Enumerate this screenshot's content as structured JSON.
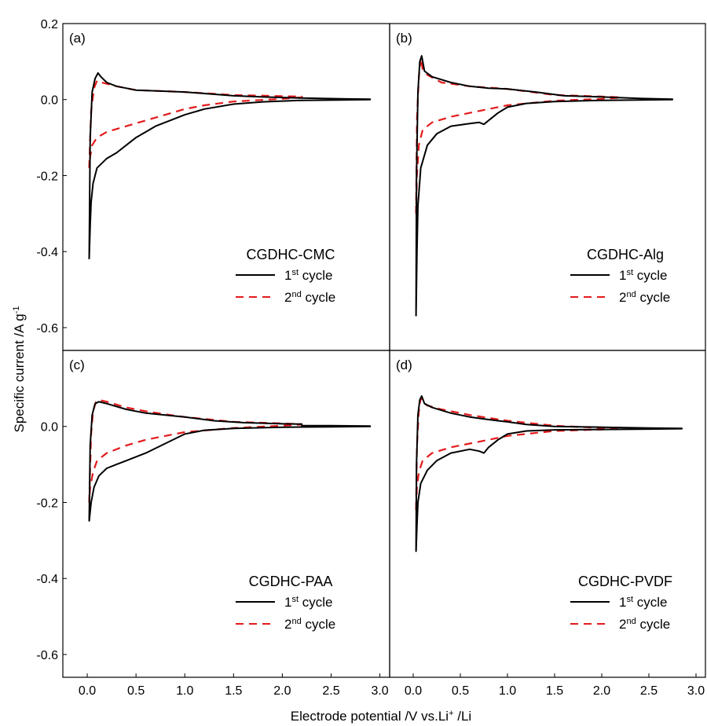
{
  "figure": {
    "ylabel_main": "Specific current /A g",
    "ylabel_sup": "-1",
    "xlabel_main": "Electrode potential /V vs.Li",
    "xlabel_sup": "+",
    "xlabel_tail": " /Li"
  },
  "legend_suffix": {
    "first": "st",
    "second": "nd",
    "cycle": " cycle"
  },
  "chart_data": [
    {
      "type": "line",
      "panel": "(a)",
      "title": "CGDHC-CMC",
      "xlim": [
        -0.25,
        3.1
      ],
      "ylim": [
        -0.66,
        0.2
      ],
      "yticks": [
        "0.2",
        "0.0",
        "-0.2",
        "-0.4",
        "-0.6"
      ],
      "xticks": [],
      "legend": "right",
      "series": [
        {
          "name": "1",
          "color": "#000000",
          "dash": "none",
          "x": [
            0.02,
            0.03,
            0.05,
            0.08,
            0.11,
            0.14,
            0.2,
            0.3,
            0.5,
            0.8,
            1.0,
            1.2,
            1.5,
            1.8,
            2.2,
            2.6,
            2.9,
            2.9,
            2.6,
            2.2,
            1.8,
            1.5,
            1.2,
            1.0,
            0.85,
            0.7,
            0.6,
            0.5,
            0.4,
            0.3,
            0.2,
            0.1,
            0.06,
            0.04,
            0.03,
            0.02
          ],
          "y": [
            -0.42,
            -0.1,
            0.02,
            0.055,
            0.07,
            0.06,
            0.045,
            0.035,
            0.025,
            0.022,
            0.02,
            0.016,
            0.01,
            0.007,
            0.004,
            0.002,
            0.001,
            0.0,
            -0.001,
            -0.002,
            -0.006,
            -0.012,
            -0.025,
            -0.04,
            -0.055,
            -0.07,
            -0.085,
            -0.1,
            -0.12,
            -0.14,
            -0.155,
            -0.18,
            -0.22,
            -0.27,
            -0.33,
            -0.42
          ]
        },
        {
          "name": "2",
          "color": "#e31a1c",
          "dash": "10,7",
          "x": [
            0.02,
            0.04,
            0.07,
            0.1,
            0.15,
            0.3,
            0.5,
            0.8,
            1.0,
            1.5,
            2.0,
            2.2,
            2.2,
            2.0,
            1.5,
            1.2,
            1.0,
            0.8,
            0.6,
            0.4,
            0.2,
            0.1,
            0.05,
            0.03,
            0.02
          ],
          "y": [
            -0.18,
            -0.03,
            0.03,
            0.05,
            0.045,
            0.035,
            0.025,
            0.022,
            0.02,
            0.012,
            0.009,
            0.008,
            0.006,
            0.002,
            -0.005,
            -0.015,
            -0.025,
            -0.04,
            -0.055,
            -0.07,
            -0.085,
            -0.1,
            -0.12,
            -0.15,
            -0.18
          ]
        }
      ]
    },
    {
      "type": "line",
      "panel": "(b)",
      "title": "CGDHC-Alg",
      "xlim": [
        -0.25,
        3.1
      ],
      "ylim": [
        -0.66,
        0.2
      ],
      "yticks": [],
      "xticks": [],
      "legend": "right",
      "series": [
        {
          "name": "1",
          "color": "#000000",
          "dash": "none",
          "x": [
            0.03,
            0.035,
            0.05,
            0.07,
            0.09,
            0.12,
            0.2,
            0.4,
            0.6,
            0.8,
            1.0,
            1.3,
            1.6,
            2.0,
            2.4,
            2.75,
            2.75,
            2.4,
            2.0,
            1.5,
            1.2,
            1.0,
            0.9,
            0.8,
            0.75,
            0.7,
            0.6,
            0.4,
            0.25,
            0.15,
            0.08,
            0.05,
            0.04,
            0.03
          ],
          "y": [
            -0.57,
            -0.2,
            0.02,
            0.1,
            0.115,
            0.075,
            0.06,
            0.045,
            0.035,
            0.03,
            0.028,
            0.02,
            0.01,
            0.007,
            0.003,
            0.001,
            0.0,
            -0.001,
            -0.002,
            -0.005,
            -0.01,
            -0.02,
            -0.035,
            -0.055,
            -0.065,
            -0.06,
            -0.063,
            -0.07,
            -0.09,
            -0.12,
            -0.18,
            -0.28,
            -0.4,
            -0.57
          ]
        },
        {
          "name": "2",
          "color": "#e31a1c",
          "dash": "10,7",
          "x": [
            0.03,
            0.04,
            0.06,
            0.08,
            0.1,
            0.15,
            0.3,
            0.6,
            1.0,
            1.5,
            2.0,
            2.2,
            2.2,
            2.0,
            1.5,
            1.0,
            0.8,
            0.6,
            0.4,
            0.2,
            0.1,
            0.06,
            0.04,
            0.03
          ],
          "y": [
            -0.3,
            -0.05,
            0.06,
            0.11,
            0.08,
            0.065,
            0.045,
            0.035,
            0.028,
            0.012,
            0.008,
            0.006,
            0.005,
            0.002,
            -0.003,
            -0.015,
            -0.025,
            -0.035,
            -0.045,
            -0.06,
            -0.08,
            -0.12,
            -0.2,
            -0.3
          ]
        }
      ]
    },
    {
      "type": "line",
      "panel": "(c)",
      "title": "CGDHC-PAA",
      "xlim": [
        -0.25,
        3.1
      ],
      "ylim": [
        -0.66,
        0.2
      ],
      "yticks": [
        "0.0",
        "-0.2",
        "-0.4",
        "-0.6"
      ],
      "xticks": [
        "0.0",
        "0.5",
        "1.0",
        "1.5",
        "2.0",
        "2.5",
        "3.0"
      ],
      "legend": "right",
      "series": [
        {
          "name": "1",
          "color": "#000000",
          "dash": "none",
          "x": [
            0.02,
            0.03,
            0.05,
            0.08,
            0.12,
            0.2,
            0.4,
            0.6,
            0.8,
            1.0,
            1.3,
            1.6,
            2.0,
            2.2,
            2.2,
            2.5,
            2.9,
            2.9,
            2.5,
            2.0,
            1.5,
            1.2,
            1.0,
            0.8,
            0.6,
            0.4,
            0.3,
            0.2,
            0.12,
            0.07,
            0.04,
            0.02
          ],
          "y": [
            -0.25,
            -0.05,
            0.03,
            0.06,
            0.065,
            0.06,
            0.045,
            0.035,
            0.03,
            0.025,
            0.015,
            0.01,
            0.007,
            0.006,
            0.002,
            0.002,
            0.001,
            0.0,
            -0.001,
            -0.002,
            -0.005,
            -0.01,
            -0.02,
            -0.045,
            -0.07,
            -0.09,
            -0.1,
            -0.11,
            -0.13,
            -0.16,
            -0.2,
            -0.25
          ]
        },
        {
          "name": "2",
          "color": "#e31a1c",
          "dash": "10,7",
          "x": [
            0.02,
            0.04,
            0.06,
            0.09,
            0.12,
            0.2,
            0.4,
            0.6,
            0.8,
            1.0,
            1.5,
            2.0,
            2.2,
            2.2,
            2.0,
            1.5,
            1.0,
            0.8,
            0.6,
            0.4,
            0.2,
            0.1,
            0.06,
            0.03,
            0.02
          ],
          "y": [
            -0.2,
            -0.02,
            0.04,
            0.065,
            0.07,
            0.065,
            0.05,
            0.04,
            0.032,
            0.025,
            0.012,
            0.008,
            0.006,
            0.005,
            0.002,
            -0.004,
            -0.015,
            -0.025,
            -0.035,
            -0.05,
            -0.07,
            -0.09,
            -0.12,
            -0.16,
            -0.2
          ]
        }
      ]
    },
    {
      "type": "line",
      "panel": "(d)",
      "title": "CGDHC-PVDF",
      "xlim": [
        -0.25,
        3.1
      ],
      "ylim": [
        -0.66,
        0.2
      ],
      "yticks": [],
      "xticks": [
        "0.0",
        "0.5",
        "1.0",
        "1.5",
        "2.0",
        "2.5",
        "3.0"
      ],
      "legend": "right",
      "series": [
        {
          "name": "1",
          "color": "#000000",
          "dash": "none",
          "x": [
            0.03,
            0.035,
            0.05,
            0.07,
            0.09,
            0.12,
            0.2,
            0.4,
            0.6,
            0.8,
            1.0,
            1.2,
            1.5,
            2.0,
            2.5,
            2.85,
            2.85,
            2.5,
            2.0,
            1.5,
            1.2,
            1.0,
            0.9,
            0.8,
            0.75,
            0.7,
            0.6,
            0.4,
            0.25,
            0.15,
            0.08,
            0.05,
            0.04,
            0.03
          ],
          "y": [
            -0.33,
            -0.1,
            0.03,
            0.07,
            0.08,
            0.06,
            0.05,
            0.035,
            0.025,
            0.018,
            0.012,
            0.005,
            0.0,
            -0.002,
            -0.004,
            -0.005,
            -0.006,
            -0.007,
            -0.008,
            -0.009,
            -0.012,
            -0.02,
            -0.035,
            -0.055,
            -0.07,
            -0.065,
            -0.06,
            -0.07,
            -0.09,
            -0.115,
            -0.15,
            -0.2,
            -0.26,
            -0.33
          ]
        },
        {
          "name": "2",
          "color": "#e31a1c",
          "dash": "10,7",
          "x": [
            0.03,
            0.04,
            0.06,
            0.08,
            0.1,
            0.15,
            0.3,
            0.6,
            1.0,
            1.5,
            2.0,
            2.2,
            2.2,
            2.0,
            1.5,
            1.0,
            0.8,
            0.6,
            0.4,
            0.2,
            0.1,
            0.06,
            0.04,
            0.03
          ],
          "y": [
            -0.22,
            -0.05,
            0.04,
            0.075,
            0.065,
            0.055,
            0.045,
            0.03,
            0.015,
            0.002,
            -0.004,
            -0.005,
            -0.006,
            -0.008,
            -0.012,
            -0.025,
            -0.035,
            -0.045,
            -0.055,
            -0.07,
            -0.09,
            -0.12,
            -0.16,
            -0.22
          ]
        }
      ]
    }
  ]
}
